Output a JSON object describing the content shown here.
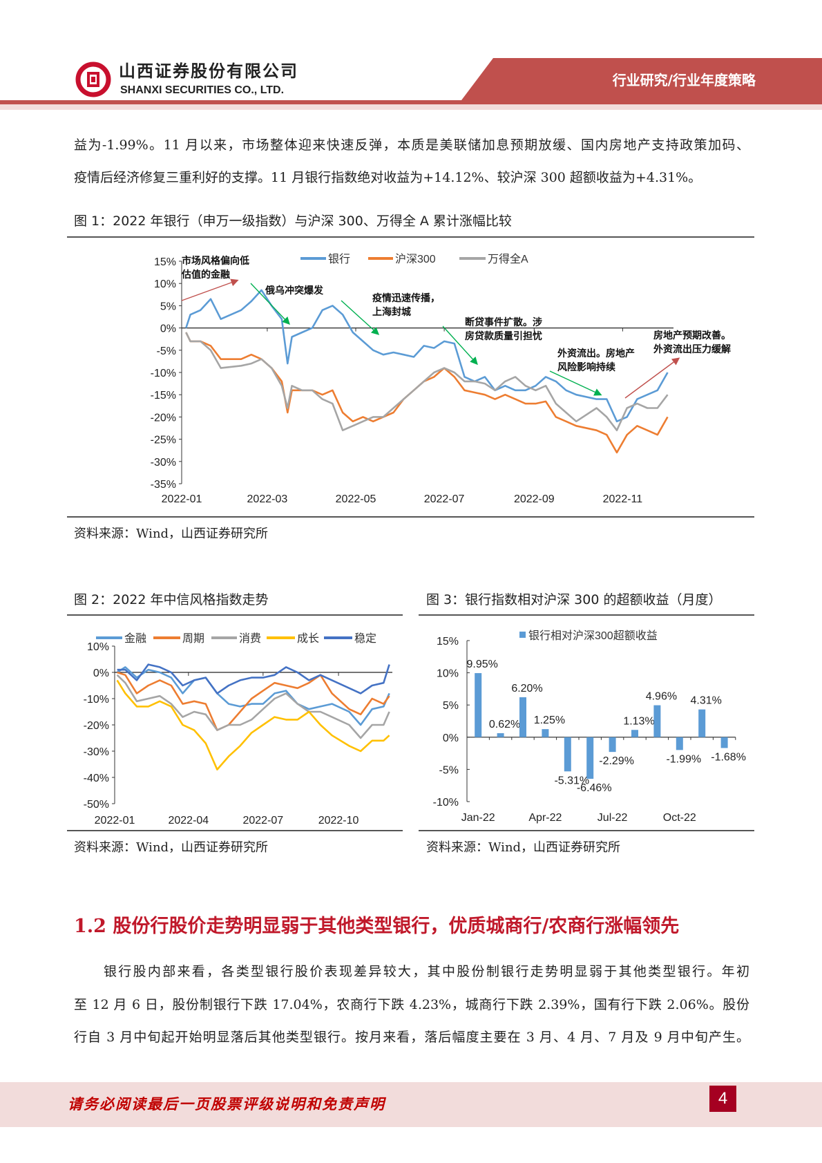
{
  "header": {
    "company_cn": "山西证券股份有限公司",
    "company_en": "SHANXI SECURITIES CO., LTD.",
    "category": "行业研究/行业年度策略",
    "brand_color": "#c0504d"
  },
  "intro_lines": [
    "益为-1.99%。11 月以来，市场整体迎来快速反弹，本质是美联储加息预期放缓、国内房地产支持政策加码、",
    "疫情后经济修复三重利好的支撑。11 月银行指数绝对收益为+14.12%、较沪深 300 超额收益为+4.31%。"
  ],
  "fig1": {
    "title": "图 1：2022 年银行（申万一级指数）与沪深 300、万得全 A 累计涨幅比较",
    "source": "资料来源：Wind，山西证券研究所",
    "annotations": {
      "a1": [
        "市场风格偏向低",
        "估值的金融"
      ],
      "a2": [
        "俄乌冲突爆发"
      ],
      "a3": [
        "疫情迅速传播，",
        "上海封城"
      ],
      "a4": [
        "断贷事件扩散。涉",
        "房贷款质量引担忧"
      ],
      "a5": [
        "外资流出。房地产",
        "风险影响持续"
      ],
      "a6": [
        "房地产预期改善。",
        "外资流出压力缓解"
      ]
    }
  },
  "fig2": {
    "title": "图 2：2022 年中信风格指数走势",
    "source": "资料来源：Wind，山西证券研究所"
  },
  "fig3": {
    "title": "图 3：银行指数相对沪深 300 的超额收益（月度）",
    "source": "资料来源：Wind，山西证券研究所"
  },
  "chart_data": [
    {
      "type": "line",
      "xlabel": "",
      "ylabel": "",
      "ylim": [
        -35,
        15
      ],
      "yticks": [
        "15%",
        "10%",
        "5%",
        "0%",
        "-5%",
        "-10%",
        "-15%",
        "-20%",
        "-25%",
        "-30%",
        "-35%"
      ],
      "xticks": [
        "2022-01",
        "2022-03",
        "2022-05",
        "2022-07",
        "2022-09",
        "2022-11"
      ],
      "legend": "top",
      "grid": false,
      "x": [
        "2022-01-04",
        "2022-01-07",
        "2022-01-14",
        "2022-01-21",
        "2022-01-28",
        "2022-02-11",
        "2022-02-18",
        "2022-02-25",
        "2022-03-04",
        "2022-03-11",
        "2022-03-15",
        "2022-03-18",
        "2022-03-25",
        "2022-04-01",
        "2022-04-08",
        "2022-04-15",
        "2022-04-22",
        "2022-04-29",
        "2022-05-06",
        "2022-05-13",
        "2022-05-20",
        "2022-05-27",
        "2022-06-03",
        "2022-06-10",
        "2022-06-17",
        "2022-06-24",
        "2022-07-01",
        "2022-07-08",
        "2022-07-15",
        "2022-07-22",
        "2022-07-29",
        "2022-08-05",
        "2022-08-12",
        "2022-08-19",
        "2022-08-26",
        "2022-09-02",
        "2022-09-09",
        "2022-09-16",
        "2022-09-23",
        "2022-09-30",
        "2022-10-14",
        "2022-10-21",
        "2022-10-28",
        "2022-11-04",
        "2022-11-11",
        "2022-11-18",
        "2022-11-25",
        "2022-12-02"
      ],
      "series": [
        {
          "name": "银行",
          "color": "#5b9bd5",
          "values": [
            0,
            3,
            4,
            6.5,
            2,
            4,
            6,
            8.5,
            5,
            2,
            -8,
            -2,
            -1,
            0,
            4,
            5,
            3,
            -1,
            -3,
            -5,
            -6,
            -5.5,
            -6,
            -6.5,
            -4,
            -4.5,
            -3,
            -3.5,
            -11,
            -12,
            -11,
            -14,
            -13,
            -14,
            -14,
            -13,
            -11,
            -12,
            -14,
            -15,
            -16,
            -16,
            -21,
            -20,
            -16,
            -15,
            -14,
            -10
          ]
        },
        {
          "name": "沪深300",
          "color": "#ed7d31",
          "values": [
            -1,
            -3,
            -3,
            -4,
            -7,
            -7,
            -6,
            -7,
            -9,
            -12,
            -19,
            -14,
            -14,
            -14,
            -15,
            -14,
            -19,
            -21,
            -20,
            -21,
            -20,
            -19,
            -16,
            -14,
            -12,
            -11,
            -9,
            -11,
            -14,
            -14.5,
            -15,
            -16,
            -15,
            -16,
            -17,
            -17,
            -16.5,
            -20,
            -21,
            -22,
            -23,
            -24,
            -28,
            -24,
            -22,
            -23,
            -24,
            -20
          ]
        },
        {
          "name": "万得全A",
          "color": "#a5a5a5",
          "values": [
            -1,
            -3,
            -3,
            -5,
            -9,
            -8.5,
            -8,
            -7,
            -9,
            -13,
            -18,
            -13,
            -14,
            -14,
            -16,
            -17,
            -23,
            -22,
            -21,
            -20,
            -20,
            -18,
            -16,
            -14,
            -12,
            -10,
            -9,
            -10,
            -12,
            -12,
            -12.5,
            -14,
            -12,
            -11,
            -13,
            -14,
            -13,
            -17,
            -19,
            -21,
            -18,
            -20,
            -23,
            -18,
            -17,
            -18,
            -18,
            -15
          ]
        }
      ]
    },
    {
      "type": "line",
      "xlabel": "",
      "ylabel": "",
      "ylim": [
        -50,
        10
      ],
      "yticks": [
        "10%",
        "0%",
        "-10%",
        "-20%",
        "-30%",
        "-40%",
        "-50%"
      ],
      "xticks": [
        "2022-01",
        "2022-04",
        "2022-07",
        "2022-10"
      ],
      "legend": "top",
      "grid": false,
      "x": [
        "2022-01-04",
        "2022-01-14",
        "2022-01-28",
        "2022-02-11",
        "2022-02-25",
        "2022-03-11",
        "2022-03-25",
        "2022-04-08",
        "2022-04-22",
        "2022-05-06",
        "2022-05-20",
        "2022-06-03",
        "2022-06-17",
        "2022-07-01",
        "2022-07-15",
        "2022-07-29",
        "2022-08-12",
        "2022-08-26",
        "2022-09-09",
        "2022-09-23",
        "2022-10-14",
        "2022-10-28",
        "2022-11-11",
        "2022-11-25",
        "2022-12-02"
      ],
      "series": [
        {
          "name": "金融",
          "color": "#5b9bd5",
          "values": [
            0,
            2,
            -2,
            1,
            0,
            -2,
            -8,
            -3,
            -2,
            -8,
            -12,
            -13,
            -12,
            -12,
            -8,
            -7,
            -12,
            -14,
            -13,
            -12,
            -15,
            -20,
            -14,
            -13,
            -8
          ]
        },
        {
          "name": "周期",
          "color": "#ed7d31",
          "values": [
            0,
            -1,
            -8,
            -5,
            -3,
            -5,
            -12,
            -11,
            -12,
            -22,
            -20,
            -15,
            -10,
            -7,
            -4,
            -5,
            -6,
            -4,
            -1,
            -8,
            -14,
            -16,
            -10,
            -12,
            -9
          ]
        },
        {
          "name": "消费",
          "color": "#a5a5a5",
          "values": [
            -1,
            -4,
            -11,
            -10,
            -9,
            -12,
            -17,
            -15,
            -16,
            -22,
            -20,
            -20,
            -18,
            -14,
            -10,
            -8,
            -12,
            -15,
            -15,
            -17,
            -20,
            -25,
            -20,
            -20,
            -15
          ]
        },
        {
          "name": "成长",
          "color": "#ffc000",
          "values": [
            -3,
            -8,
            -13,
            -13,
            -11,
            -13,
            -20,
            -22,
            -27,
            -37,
            -32,
            -28,
            -23,
            -20,
            -17,
            -18,
            -18,
            -15,
            -20,
            -24,
            -28,
            -30,
            -26,
            -26,
            -24
          ]
        },
        {
          "name": "稳定",
          "color": "#4472c4",
          "values": [
            1,
            1,
            -3,
            3,
            2,
            0,
            -5,
            -3,
            -2,
            -8,
            -5,
            -3,
            -2,
            -2,
            -1,
            2,
            0,
            -3,
            -1,
            -3,
            -6,
            -8,
            -5,
            -4,
            3
          ]
        }
      ]
    },
    {
      "type": "bar",
      "xlabel": "",
      "ylabel": "",
      "ylim": [
        -10,
        15
      ],
      "yticks": [
        "15%",
        "10%",
        "5%",
        "0%",
        "-5%",
        "-10%"
      ],
      "xticks": [
        "Jan-22",
        "Apr-22",
        "Jul-22",
        "Oct-22"
      ],
      "legend": "top",
      "grid": false,
      "categories": [
        "Jan-22",
        "Feb-22",
        "Mar-22",
        "Apr-22",
        "May-22",
        "Jun-22",
        "Jul-22",
        "Aug-22",
        "Sep-22",
        "Oct-22",
        "Nov-22",
        "Dec-22"
      ],
      "series": [
        {
          "name": "银行相对沪深300超额收益",
          "color": "#5b9bd5",
          "values": [
            9.95,
            0.62,
            6.2,
            1.25,
            -5.31,
            -6.46,
            -2.29,
            1.13,
            4.96,
            -1.99,
            4.31,
            -1.68
          ],
          "labels": [
            "9.95%",
            "0.62%",
            "6.20%",
            "1.25%",
            "-5.31%",
            "-6.46%",
            "-2.29%",
            "1.13%",
            "4.96%",
            "-1.99%",
            "4.31%",
            "-1.68%"
          ]
        }
      ]
    }
  ],
  "section": {
    "heading": "1.2  股份行股价走势明显弱于其他类型银行，优质城商行/农商行涨幅领先",
    "lines": [
      "银行股内部来看，各类型银行股价表现差异较大，其中股份制银行走势明显弱于其他类型银行。年初",
      "至 12 月 6 日，股份制银行下跌 17.04%，农商行下跌 4.23%，城商行下跌 2.39%，国有行下跌 2.06%。股份",
      "行自 3 月中旬起开始明显落后其他类型银行。按月来看，落后幅度主要在 3 月、4 月、7 月及 9 月中旬产生。"
    ]
  },
  "footer": {
    "disclaimer": "请务必阅读最后一页股票评级说明和免责声明",
    "page": "4"
  }
}
